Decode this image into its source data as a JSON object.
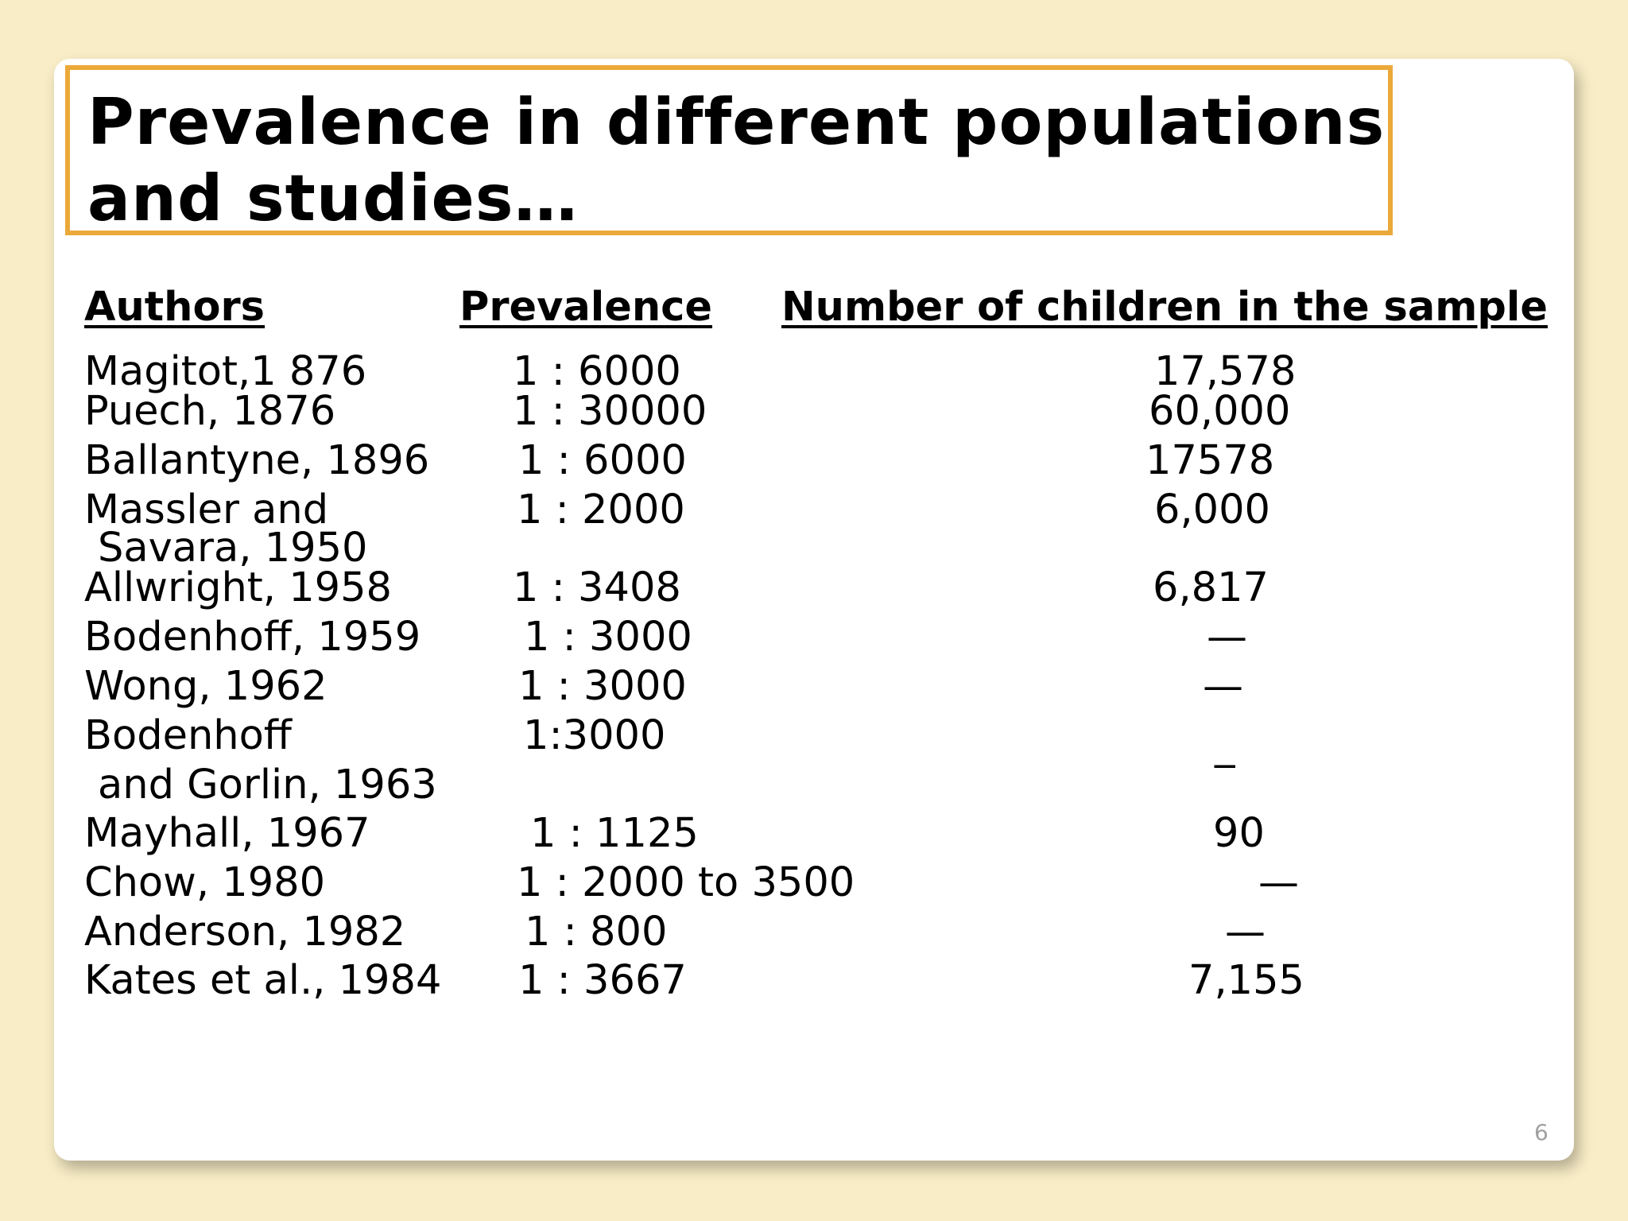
{
  "title": "Prevalence in different populations and studies…",
  "headers": {
    "authors": "Authors",
    "prevalence": "Prevalence",
    "sample": "Number of children in the sample"
  },
  "rows": [
    {
      "author": "Magitot,1 876",
      "prevalence": "1 : 6000",
      "sample": "17,578"
    },
    {
      "author": "Puech, 1876",
      "prevalence": "1 : 30000",
      "sample": "60,000"
    },
    {
      "author": "Ballantyne, 1896",
      "prevalence": "1 : 6000",
      "sample": "17578"
    },
    {
      "author": "Massler and",
      "author_cont": "Savara, 1950",
      "prevalence": "1 : 2000",
      "sample": "6,000"
    },
    {
      "author": "Allwright, 1958",
      "prevalence": "1 : 3408",
      "sample": "6,817"
    },
    {
      "author": "Bodenhoff, 1959",
      "prevalence": "1 : 3000",
      "sample": "—"
    },
    {
      "author": "Wong, 1962",
      "prevalence": "1 : 3000",
      "sample": "—"
    },
    {
      "author": "Bodenhoff",
      "author_cont": "and Gorlin, 1963",
      "prevalence": "1:3000",
      "sample": "_"
    },
    {
      "author": "Mayhall, 1967",
      "prevalence": "1 : 1125",
      "sample": "90"
    },
    {
      "author": "Chow, 1980",
      "prevalence": "1 : 2000 to 3500",
      "sample": "—"
    },
    {
      "author": "Anderson, 1982",
      "prevalence": "1 : 800",
      "sample": "—"
    },
    {
      "author": "Kates et al., 1984",
      "prevalence": "1 : 3667",
      "sample": "7,155"
    }
  ],
  "page_number": "6"
}
